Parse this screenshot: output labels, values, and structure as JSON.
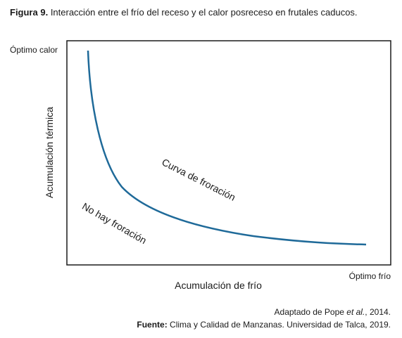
{
  "figure": {
    "label": "Figura 9.",
    "caption": "Interacción entre el frío del receso y el calor posreceso en frutales caducos."
  },
  "axes": {
    "y_label": "Acumulación térmica",
    "y_max_label": "Óptimo calor",
    "x_label": "Acumulación de frío",
    "x_max_label": "Óptimo frío"
  },
  "annotations": {
    "curve": "Curva de froración",
    "below": "No hay froración"
  },
  "source": {
    "adapted_prefix": "Adaptado de Pope",
    "adapted_italic": "et al.",
    "adapted_suffix": ", 2014.",
    "label": "Fuente:",
    "text": "Clima y Calidad de Manzanas. Universidad de Talca, 2019."
  }
}
